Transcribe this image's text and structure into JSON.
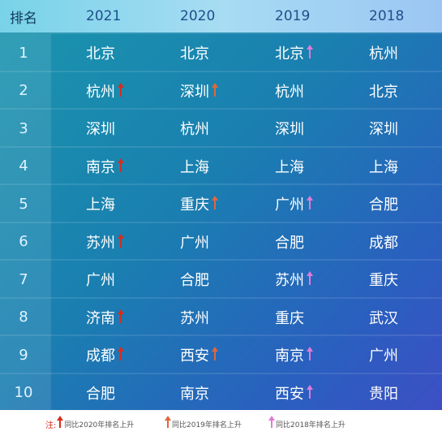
{
  "colors": {
    "up_vs_2020": "#d62d1f",
    "up_vs_2019": "#e2663a",
    "up_vs_2018": "#e07ad8"
  },
  "header": {
    "rank": "排名",
    "years": [
      "2021",
      "2020",
      "2019",
      "2018"
    ]
  },
  "rows": [
    {
      "rank": "1",
      "cells": [
        {
          "city": "北京"
        },
        {
          "city": "北京"
        },
        {
          "city": "北京",
          "arrow": "up_vs_2018"
        },
        {
          "city": "杭州"
        }
      ]
    },
    {
      "rank": "2",
      "cells": [
        {
          "city": "杭州",
          "arrow": "up_vs_2020"
        },
        {
          "city": "深圳",
          "arrow": "up_vs_2019"
        },
        {
          "city": "杭州"
        },
        {
          "city": "北京"
        }
      ]
    },
    {
      "rank": "3",
      "cells": [
        {
          "city": "深圳"
        },
        {
          "city": "杭州"
        },
        {
          "city": "深圳"
        },
        {
          "city": "深圳"
        }
      ]
    },
    {
      "rank": "4",
      "cells": [
        {
          "city": "南京",
          "arrow": "up_vs_2020"
        },
        {
          "city": "上海"
        },
        {
          "city": "上海"
        },
        {
          "city": "上海"
        }
      ]
    },
    {
      "rank": "5",
      "cells": [
        {
          "city": "上海"
        },
        {
          "city": "重庆",
          "arrow": "up_vs_2019"
        },
        {
          "city": "广州",
          "arrow": "up_vs_2018"
        },
        {
          "city": "合肥"
        }
      ]
    },
    {
      "rank": "6",
      "cells": [
        {
          "city": "苏州",
          "arrow": "up_vs_2020"
        },
        {
          "city": "广州"
        },
        {
          "city": "合肥"
        },
        {
          "city": "成都"
        }
      ]
    },
    {
      "rank": "7",
      "cells": [
        {
          "city": "广州"
        },
        {
          "city": "合肥"
        },
        {
          "city": "苏州",
          "arrow": "up_vs_2018"
        },
        {
          "city": "重庆"
        }
      ]
    },
    {
      "rank": "8",
      "cells": [
        {
          "city": "济南",
          "arrow": "up_vs_2020"
        },
        {
          "city": "苏州"
        },
        {
          "city": "重庆"
        },
        {
          "city": "武汉"
        }
      ]
    },
    {
      "rank": "9",
      "cells": [
        {
          "city": "成都",
          "arrow": "up_vs_2020"
        },
        {
          "city": "西安",
          "arrow": "up_vs_2019"
        },
        {
          "city": "南京",
          "arrow": "up_vs_2018"
        },
        {
          "city": "广州"
        }
      ]
    },
    {
      "rank": "10",
      "cells": [
        {
          "city": "合肥"
        },
        {
          "city": "南京"
        },
        {
          "city": "西安",
          "arrow": "up_vs_2018"
        },
        {
          "city": "贵阳"
        }
      ]
    }
  ],
  "legend": {
    "note": "注:",
    "items": [
      {
        "key": "up_vs_2020",
        "label": "同比2020年排名上升"
      },
      {
        "key": "up_vs_2019",
        "label": "同比2019年排名上升"
      },
      {
        "key": "up_vs_2018",
        "label": "同比2018年排名上升"
      }
    ]
  }
}
